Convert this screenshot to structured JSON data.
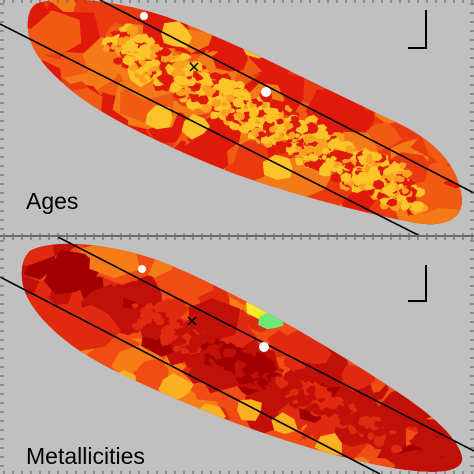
{
  "panels": [
    {
      "label": "Ages"
    },
    {
      "label": "Metallicities"
    }
  ],
  "colors": {
    "background": "#c0c0c0",
    "ages_palette": [
      "#e01a0a",
      "#ea3a10",
      "#f05a12",
      "#f47a18",
      "#f8a020",
      "#fcc428"
    ],
    "metallicities_palette": [
      "#a00000",
      "#c01008",
      "#e02a10",
      "#f04c14",
      "#f77c18",
      "#fbb11f",
      "#f7ec2a",
      "#6de878"
    ],
    "lines": "#000000",
    "tick_marks": "#5a5a5a"
  },
  "markers": [
    "center-cross",
    "scale-bar"
  ]
}
